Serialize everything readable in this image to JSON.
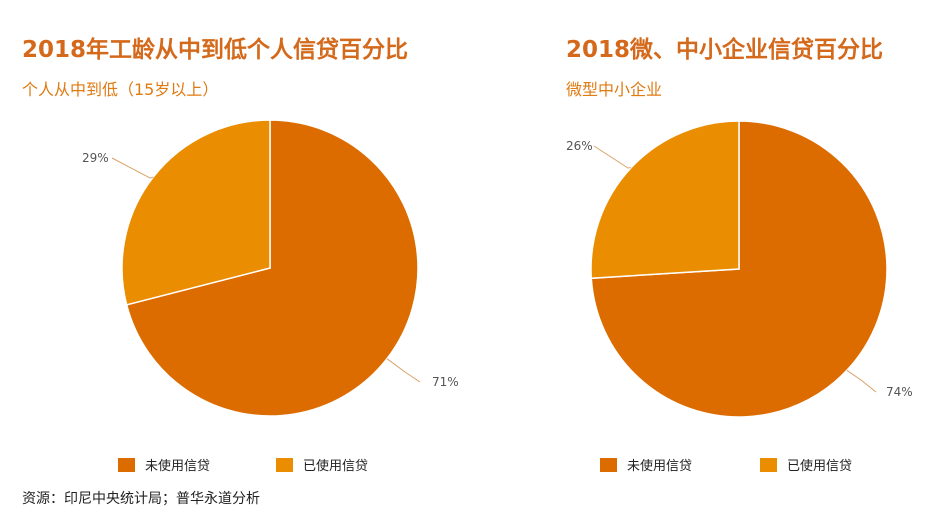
{
  "colors": {
    "unused": "#dc6b00",
    "used": "#ea8d00",
    "title": "#d4691b",
    "subtitle": "#e07a12"
  },
  "chart_data": [
    {
      "type": "pie",
      "title": "2018年工龄从中到低个人信贷百分比",
      "subtitle": "个人从中到低（15岁以上）",
      "categories": [
        "未使用信贷",
        "已使用信贷"
      ],
      "values": [
        71,
        29
      ],
      "labels": [
        "71%",
        "29%"
      ],
      "legend": "bottom"
    },
    {
      "type": "pie",
      "title": "2018微、中小企业信贷百分比",
      "subtitle": "微型中小企业",
      "categories": [
        "未使用信贷",
        "已使用信贷"
      ],
      "values": [
        74,
        26
      ],
      "labels": [
        "74%",
        "26%"
      ],
      "legend": "bottom"
    }
  ],
  "legend": {
    "unused_label": "未使用信贷",
    "used_label": "已使用信贷"
  },
  "source": "资源：印尼中央统计局；普华永道分析"
}
